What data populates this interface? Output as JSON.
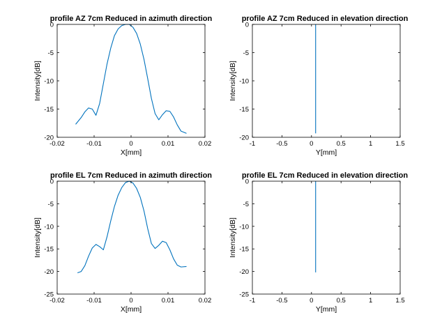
{
  "colors": {
    "line": "#0072bd",
    "axis": "#000000",
    "background": "#ffffff"
  },
  "chart_data": [
    {
      "type": "line",
      "title": "profile AZ 7cm Reduced in azimuth direction",
      "xlabel": "X[mm]",
      "ylabel": "Intensity[dB]",
      "xlim": [
        -0.02,
        0.02
      ],
      "ylim": [
        -20,
        0
      ],
      "xticks": [
        "-0.02",
        "-0.01",
        "0",
        "0.01",
        "0.02"
      ],
      "yticks": [
        "-20",
        "-15",
        "-10",
        "-5",
        "0"
      ],
      "series": [
        {
          "x": [
            -0.015,
            -0.0135,
            -0.0125,
            -0.0115,
            -0.0105,
            -0.0095,
            -0.0085,
            -0.0075,
            -0.0065,
            -0.0055,
            -0.0045,
            -0.0035,
            -0.0025,
            -0.0015,
            -0.0005,
            0.0005,
            0.0015,
            0.0025,
            0.0035,
            0.0045,
            0.0055,
            0.0065,
            0.0075,
            0.0085,
            0.0095,
            0.0105,
            0.0115,
            0.0125,
            0.0135,
            0.015
          ],
          "y": [
            -17.7,
            -16.5,
            -15.5,
            -14.8,
            -15.0,
            -16.1,
            -14.0,
            -10.5,
            -7.0,
            -4.2,
            -2.0,
            -0.8,
            -0.2,
            0.0,
            0.0,
            -0.5,
            -1.6,
            -3.5,
            -6.2,
            -9.6,
            -13.1,
            -15.8,
            -16.9,
            -16.0,
            -15.3,
            -15.4,
            -16.4,
            -17.8,
            -18.9,
            -19.3
          ]
        }
      ]
    },
    {
      "type": "line",
      "title": "profile AZ 7cm Reduced in elevation direction",
      "xlabel": "Y[mm]",
      "ylabel": "Intensity[dB]",
      "xlim": [
        -1,
        1.5
      ],
      "ylim": [
        -20,
        0
      ],
      "xticks": [
        "-1",
        "-0.5",
        "0",
        "0.5",
        "1",
        "1.5"
      ],
      "yticks": [
        "-20",
        "-15",
        "-10",
        "-5",
        "0"
      ],
      "series": [
        {
          "x": [
            0.07,
            0.07
          ],
          "y": [
            -19.3,
            0
          ]
        }
      ]
    },
    {
      "type": "line",
      "title": "profile EL 7cm Reduced in azimuth direction",
      "xlabel": "X[mm]",
      "ylabel": "Intensity[dB]",
      "xlim": [
        -0.02,
        0.02
      ],
      "ylim": [
        -25,
        0
      ],
      "xticks": [
        "-0.02",
        "-0.01",
        "0",
        "0.01",
        "0.02"
      ],
      "yticks": [
        "-25",
        "-20",
        "-15",
        "-10",
        "-5",
        "0"
      ],
      "series": [
        {
          "x": [
            -0.0145,
            -0.0135,
            -0.0125,
            -0.0115,
            -0.0105,
            -0.0095,
            -0.0085,
            -0.0075,
            -0.0065,
            -0.0055,
            -0.0045,
            -0.0035,
            -0.0025,
            -0.0015,
            -0.0005,
            0.0005,
            0.0015,
            0.0025,
            0.0035,
            0.0045,
            0.0055,
            0.0065,
            0.0075,
            0.0085,
            0.0095,
            0.0105,
            0.0115,
            0.0125,
            0.0135,
            0.015
          ],
          "y": [
            -20.3,
            -20.0,
            -18.7,
            -16.6,
            -14.8,
            -14.0,
            -14.5,
            -15.2,
            -12.3,
            -8.8,
            -5.6,
            -3.1,
            -1.4,
            -0.3,
            0.0,
            -0.4,
            -1.6,
            -3.6,
            -6.6,
            -10.5,
            -13.8,
            -14.9,
            -14.2,
            -13.3,
            -13.6,
            -15.2,
            -17.2,
            -18.6,
            -19.0,
            -18.9
          ]
        }
      ]
    },
    {
      "type": "line",
      "title": "profile EL 7cm Reduced in elevation direction",
      "xlabel": "Y[mm]",
      "ylabel": "Intensity[dB]",
      "xlim": [
        -1,
        1.5
      ],
      "ylim": [
        -25,
        0
      ],
      "xticks": [
        "-1",
        "-0.5",
        "0",
        "0.5",
        "1",
        "1.5"
      ],
      "yticks": [
        "-25",
        "-20",
        "-15",
        "-10",
        "-5",
        "0"
      ],
      "series": [
        {
          "x": [
            0.07,
            0.07
          ],
          "y": [
            -20.2,
            0
          ]
        }
      ]
    }
  ]
}
